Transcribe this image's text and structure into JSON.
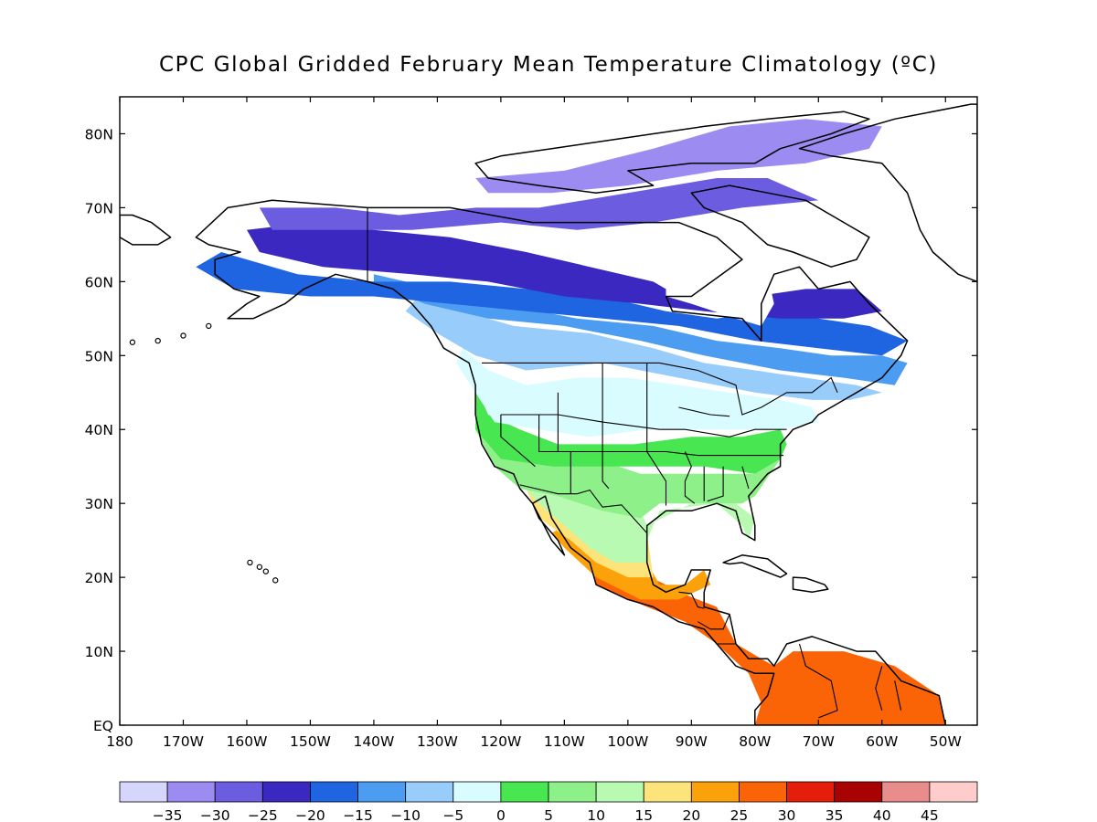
{
  "title": "CPC Global Gridded February Mean Temperature Climatology (ºC)",
  "map": {
    "type": "filled-contour-map",
    "region": "North America",
    "lon_range": [
      -180,
      -45
    ],
    "lat_range": [
      0,
      85
    ],
    "lat_ticks": [
      {
        "value": 80,
        "label": "80N"
      },
      {
        "value": 70,
        "label": "70N"
      },
      {
        "value": 60,
        "label": "60N"
      },
      {
        "value": 50,
        "label": "50N"
      },
      {
        "value": 40,
        "label": "40N"
      },
      {
        "value": 30,
        "label": "30N"
      },
      {
        "value": 20,
        "label": "20N"
      },
      {
        "value": 10,
        "label": "10N"
      },
      {
        "value": 0,
        "label": "EQ"
      }
    ],
    "lon_ticks": [
      {
        "value": -180,
        "label": "180"
      },
      {
        "value": -170,
        "label": "170W"
      },
      {
        "value": -160,
        "label": "160W"
      },
      {
        "value": -150,
        "label": "150W"
      },
      {
        "value": -140,
        "label": "140W"
      },
      {
        "value": -130,
        "label": "130W"
      },
      {
        "value": -120,
        "label": "120W"
      },
      {
        "value": -110,
        "label": "110W"
      },
      {
        "value": -100,
        "label": "100W"
      },
      {
        "value": -90,
        "label": "90W"
      },
      {
        "value": -80,
        "label": "80W"
      },
      {
        "value": -70,
        "label": "70W"
      },
      {
        "value": -60,
        "label": "60W"
      },
      {
        "value": -50,
        "label": "50W"
      }
    ]
  },
  "colorbar": {
    "colors": [
      "#d6d6fc",
      "#9c8cf2",
      "#6b5ce0",
      "#3a28c0",
      "#1f64e0",
      "#4c9cf2",
      "#98ccfa",
      "#d8fcff",
      "#48e650",
      "#8ef088",
      "#b8fab2",
      "#fde47a",
      "#fba20a",
      "#fb6406",
      "#e41e0a",
      "#a80202",
      "#e88c8c",
      "#ffcccc"
    ],
    "labels": [
      "−35",
      "−30",
      "−25",
      "−20",
      "−15",
      "−10",
      "−5",
      "0",
      "5",
      "10",
      "15",
      "20",
      "25",
      "30",
      "35",
      "40",
      "45"
    ]
  },
  "zones": [
    {
      "band": 17,
      "color": "#fb6406",
      "pts": [
        [
          -92,
          18
        ],
        [
          -86,
          16
        ],
        [
          -83,
          11
        ],
        [
          -79,
          9
        ],
        [
          -77,
          8
        ],
        [
          -74,
          10
        ],
        [
          -66,
          10
        ],
        [
          -58,
          8
        ],
        [
          -51,
          4
        ],
        [
          -50,
          0
        ],
        [
          -80,
          0
        ],
        [
          -79,
          3
        ],
        [
          -81,
          7
        ],
        [
          -86,
          11
        ],
        [
          -91,
          14
        ],
        [
          -97,
          16
        ],
        [
          -105,
          19
        ],
        [
          -106,
          22
        ],
        [
          -99,
          21
        ],
        [
          -94,
          19
        ]
      ]
    },
    {
      "band": 16,
      "color": "#fba20a",
      "pts": [
        [
          -106,
          23
        ],
        [
          -97,
          22
        ],
        [
          -95,
          19
        ],
        [
          -91,
          19
        ],
        [
          -88,
          21
        ],
        [
          -87,
          19
        ],
        [
          -92,
          17
        ],
        [
          -98,
          17
        ],
        [
          -105,
          20
        ],
        [
          -110,
          24
        ],
        [
          -112,
          26
        ],
        [
          -110,
          27
        ]
      ]
    },
    {
      "band": 15,
      "color": "#fde47a",
      "pts": [
        [
          -114,
          31
        ],
        [
          -110,
          29
        ],
        [
          -106,
          26
        ],
        [
          -102,
          24
        ],
        [
          -97,
          26
        ],
        [
          -96,
          20
        ],
        [
          -100,
          20
        ],
        [
          -105,
          22
        ],
        [
          -109,
          25
        ],
        [
          -114,
          28
        ],
        [
          -116,
          32
        ]
      ]
    },
    {
      "band": 14,
      "color": "#b8fab2",
      "pts": [
        [
          -117,
          33
        ],
        [
          -111,
          32
        ],
        [
          -105,
          30
        ],
        [
          -98,
          29
        ],
        [
          -97,
          27
        ],
        [
          -90,
          30
        ],
        [
          -83,
          30
        ],
        [
          -80,
          28
        ],
        [
          -81,
          25
        ],
        [
          -82,
          27
        ],
        [
          -86,
          30
        ],
        [
          -95,
          29
        ],
        [
          -97,
          25
        ],
        [
          -97,
          22
        ],
        [
          -102,
          22
        ],
        [
          -106,
          24
        ],
        [
          -110,
          27
        ],
        [
          -114,
          30
        ]
      ]
    },
    {
      "band": 13,
      "color": "#8ef088",
      "pts": [
        [
          -124,
          40
        ],
        [
          -120,
          36
        ],
        [
          -112,
          35
        ],
        [
          -105,
          36
        ],
        [
          -98,
          34
        ],
        [
          -90,
          34
        ],
        [
          -80,
          34
        ],
        [
          -76,
          36
        ],
        [
          -80,
          31
        ],
        [
          -82,
          30
        ],
        [
          -89,
          30
        ],
        [
          -95,
          30
        ],
        [
          -98,
          28
        ],
        [
          -104,
          29
        ],
        [
          -111,
          31
        ],
        [
          -117,
          32
        ],
        [
          -121,
          35
        ]
      ]
    },
    {
      "band": 12,
      "color": "#48e650",
      "pts": [
        [
          -124,
          46
        ],
        [
          -122,
          42
        ],
        [
          -117,
          40
        ],
        [
          -111,
          38
        ],
        [
          -104,
          38
        ],
        [
          -99,
          38
        ],
        [
          -90,
          39
        ],
        [
          -82,
          39
        ],
        [
          -76,
          40
        ],
        [
          -75,
          38
        ],
        [
          -76,
          36
        ],
        [
          -80,
          34
        ],
        [
          -88,
          35
        ],
        [
          -98,
          35
        ],
        [
          -106,
          35
        ],
        [
          -112,
          35
        ],
        [
          -120,
          36
        ],
        [
          -124,
          40
        ]
      ]
    },
    {
      "band": 11,
      "color": "#d8fcff",
      "pts": [
        [
          -126,
          51
        ],
        [
          -122,
          48
        ],
        [
          -116,
          46
        ],
        [
          -108,
          47
        ],
        [
          -100,
          47
        ],
        [
          -92,
          46
        ],
        [
          -84,
          45
        ],
        [
          -76,
          44
        ],
        [
          -71,
          43
        ],
        [
          -70,
          41
        ],
        [
          -76,
          40
        ],
        [
          -85,
          40
        ],
        [
          -97,
          40
        ],
        [
          -106,
          39
        ],
        [
          -114,
          40
        ],
        [
          -121,
          41
        ],
        [
          -124,
          45
        ],
        [
          -127,
          49
        ]
      ]
    },
    {
      "band": 10,
      "color": "#98ccfa",
      "pts": [
        [
          -133,
          58
        ],
        [
          -126,
          56
        ],
        [
          -118,
          54
        ],
        [
          -106,
          53
        ],
        [
          -96,
          51
        ],
        [
          -88,
          49
        ],
        [
          -80,
          48
        ],
        [
          -72,
          47
        ],
        [
          -64,
          46
        ],
        [
          -60,
          45
        ],
        [
          -65,
          44
        ],
        [
          -71,
          44
        ],
        [
          -80,
          45
        ],
        [
          -92,
          47
        ],
        [
          -104,
          49
        ],
        [
          -116,
          48
        ],
        [
          -124,
          50
        ],
        [
          -130,
          53
        ],
        [
          -135,
          56
        ]
      ]
    },
    {
      "band": 9,
      "color": "#4c9cf2",
      "pts": [
        [
          -140,
          61
        ],
        [
          -130,
          59
        ],
        [
          -120,
          57
        ],
        [
          -108,
          55
        ],
        [
          -96,
          54
        ],
        [
          -86,
          52
        ],
        [
          -76,
          51
        ],
        [
          -68,
          50
        ],
        [
          -60,
          50
        ],
        [
          -56,
          49
        ],
        [
          -58,
          46
        ],
        [
          -66,
          47
        ],
        [
          -76,
          48
        ],
        [
          -88,
          50
        ],
        [
          -98,
          52
        ],
        [
          -110,
          54
        ],
        [
          -122,
          55
        ],
        [
          -132,
          57
        ],
        [
          -140,
          60
        ]
      ]
    },
    {
      "band": 8,
      "color": "#1f64e0",
      "pts": [
        [
          -164,
          64
        ],
        [
          -152,
          61
        ],
        [
          -140,
          60
        ],
        [
          -128,
          60
        ],
        [
          -116,
          59
        ],
        [
          -104,
          58
        ],
        [
          -94,
          56
        ],
        [
          -86,
          55
        ],
        [
          -78,
          56
        ],
        [
          -70,
          55
        ],
        [
          -62,
          54
        ],
        [
          -56,
          52
        ],
        [
          -60,
          50
        ],
        [
          -70,
          51
        ],
        [
          -80,
          52
        ],
        [
          -92,
          54
        ],
        [
          -104,
          55
        ],
        [
          -116,
          56
        ],
        [
          -128,
          57
        ],
        [
          -140,
          58
        ],
        [
          -150,
          58
        ],
        [
          -162,
          59
        ],
        [
          -168,
          62
        ]
      ]
    },
    {
      "band": 7,
      "color": "#3a28c0",
      "pts": [
        [
          -160,
          67
        ],
        [
          -150,
          68
        ],
        [
          -140,
          67
        ],
        [
          -128,
          66
        ],
        [
          -116,
          64
        ],
        [
          -106,
          62
        ],
        [
          -96,
          60
        ],
        [
          -90,
          57
        ],
        [
          -80,
          58
        ],
        [
          -72,
          59
        ],
        [
          -64,
          59
        ],
        [
          -60,
          56
        ],
        [
          -66,
          55
        ],
        [
          -76,
          55
        ],
        [
          -88,
          56
        ],
        [
          -98,
          57
        ],
        [
          -110,
          58
        ],
        [
          -122,
          60
        ],
        [
          -134,
          61
        ],
        [
          -148,
          62
        ],
        [
          -158,
          64
        ]
      ]
    },
    {
      "band": 6,
      "color": "#6b5ce0",
      "pts": [
        [
          -158,
          70
        ],
        [
          -146,
          70
        ],
        [
          -136,
          69
        ],
        [
          -124,
          70
        ],
        [
          -114,
          70
        ],
        [
          -100,
          72
        ],
        [
          -86,
          74
        ],
        [
          -78,
          74
        ],
        [
          -70,
          71
        ],
        [
          -82,
          70
        ],
        [
          -96,
          68
        ],
        [
          -108,
          67
        ],
        [
          -120,
          68
        ],
        [
          -134,
          67
        ],
        [
          -146,
          67
        ],
        [
          -156,
          67
        ]
      ]
    },
    {
      "band": 5,
      "color": "#9c8cf2",
      "pts": [
        [
          -124,
          74
        ],
        [
          -110,
          75
        ],
        [
          -96,
          78
        ],
        [
          -84,
          81
        ],
        [
          -72,
          82
        ],
        [
          -60,
          81
        ],
        [
          -62,
          78
        ],
        [
          -72,
          76
        ],
        [
          -86,
          75
        ],
        [
          -100,
          73
        ],
        [
          -112,
          72
        ],
        [
          -122,
          72
        ]
      ]
    }
  ]
}
